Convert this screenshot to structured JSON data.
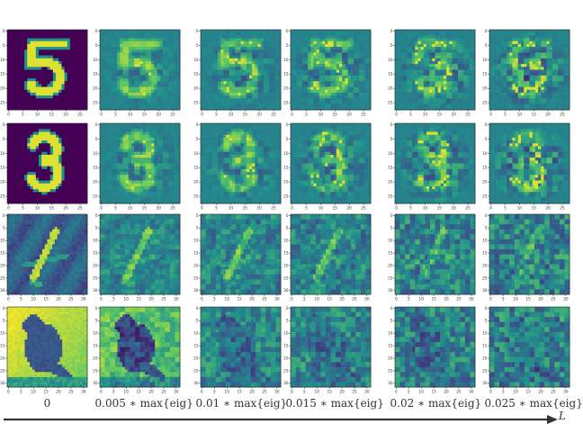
{
  "columns": [
    {
      "label": "0"
    },
    {
      "label": "0.005 ∗ max{eig}"
    },
    {
      "label": "0.01 ∗ max{eig}"
    },
    {
      "label": "0.015 ∗ max{eig}"
    },
    {
      "label": "0.02 ∗ max{eig}"
    },
    {
      "label": "0.025 ∗ max{eig}"
    }
  ],
  "rows": [
    {
      "subject": "digit-5",
      "x_ticks": [
        "0",
        "5",
        "10",
        "15",
        "20",
        "25"
      ],
      "y_ticks": [
        "0",
        "5",
        "10",
        "15",
        "20",
        "25"
      ]
    },
    {
      "subject": "digit-3",
      "x_ticks": [
        "0",
        "5",
        "10",
        "15",
        "20",
        "25"
      ],
      "y_ticks": [
        "0",
        "5",
        "10",
        "15",
        "20",
        "25"
      ]
    },
    {
      "subject": "airplane",
      "x_ticks": [
        "0",
        "5",
        "10",
        "15",
        "20",
        "25",
        "30"
      ],
      "y_ticks": [
        "0",
        "5",
        "10",
        "15",
        "20",
        "25",
        "30"
      ]
    },
    {
      "subject": "bird",
      "x_ticks": [
        "0",
        "5",
        "10",
        "15",
        "20",
        "25",
        "30"
      ],
      "y_ticks": [
        "0",
        "5",
        "10",
        "15",
        "20",
        "25",
        "30"
      ]
    }
  ],
  "axis_label": "L",
  "colormap": [
    "#440154",
    "#3b528b",
    "#21908c",
    "#5dc863",
    "#fde725"
  ]
}
